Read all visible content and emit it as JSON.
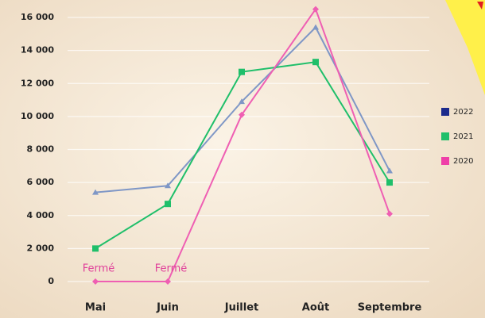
{
  "chart_data": {
    "type": "line",
    "categories": [
      "Mai",
      "Juin",
      "Juillet",
      "Août",
      "Septembre"
    ],
    "series": [
      {
        "name": "2022",
        "color": "#7f97c6",
        "legend_color": "#1c2a8c",
        "marker": "triangle",
        "values": [
          5400,
          5800,
          10900,
          15400,
          6700
        ]
      },
      {
        "name": "2021",
        "color": "#1fbf6a",
        "legend_color": "#1fbf6a",
        "marker": "square",
        "values": [
          2000,
          4700,
          12700,
          13300,
          6000
        ]
      },
      {
        "name": "2020",
        "color": "#ef5fb3",
        "legend_color": "#ef3fa8",
        "marker": "diamond",
        "values": [
          0,
          0,
          10100,
          16500,
          4100
        ]
      }
    ],
    "annotations": [
      "Fermé",
      "Fermé"
    ],
    "ylim": [
      0,
      16000
    ],
    "yticks": [
      {
        "value": 0,
        "label": "0"
      },
      {
        "value": 2000,
        "label": "2 000"
      },
      {
        "value": 4000,
        "label": "4 000"
      },
      {
        "value": 6000,
        "label": "6 000"
      },
      {
        "value": 8000,
        "label": "8 000"
      },
      {
        "value": 10000,
        "label": "10 000"
      },
      {
        "value": 12000,
        "label": "12 000"
      },
      {
        "value": 14000,
        "label": "14 000"
      },
      {
        "value": 16000,
        "label": "16 000"
      }
    ],
    "grid": true,
    "legend": "right"
  }
}
